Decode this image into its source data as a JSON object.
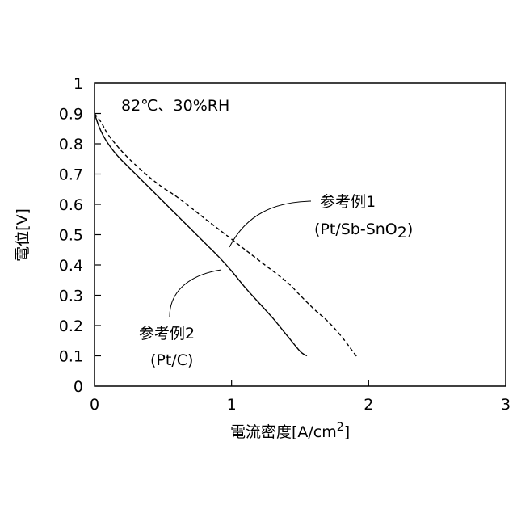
{
  "chart_data": {
    "type": "line",
    "title": "",
    "xlabel": "電流密度[A/cm²]",
    "xlabel_main": "電流密度[A/cm",
    "xlabel_sup": "2",
    "xlabel_end": "]",
    "ylabel": "電位[V]",
    "xlim": [
      0,
      3
    ],
    "ylim": [
      0,
      1
    ],
    "x_ticks": [
      0,
      1,
      2,
      3
    ],
    "y_ticks": [
      0,
      0.1,
      0.2,
      0.3,
      0.4,
      0.5,
      0.6,
      0.7,
      0.8,
      0.9,
      1
    ],
    "x_tick_labels": [
      "0",
      "1",
      "2",
      "3"
    ],
    "y_tick_labels": [
      "0",
      "0.1",
      "0.2",
      "0.3",
      "0.4",
      "0.5",
      "0.6",
      "0.7",
      "0.8",
      "0.9",
      "1"
    ],
    "grid": false,
    "condition_label": "82℃、30%RH",
    "series": [
      {
        "name": "参考例2",
        "sublabel": "(Pt/C)",
        "line_style": "solid",
        "color": "#000000",
        "x": [
          0,
          0.03,
          0.06,
          0.1,
          0.15,
          0.2,
          0.3,
          0.4,
          0.5,
          0.6,
          0.7,
          0.8,
          0.9,
          1.0,
          1.1,
          1.2,
          1.3,
          1.4,
          1.5,
          1.55
        ],
        "y": [
          0.9,
          0.86,
          0.83,
          0.8,
          0.77,
          0.745,
          0.7,
          0.655,
          0.61,
          0.565,
          0.52,
          0.475,
          0.43,
          0.38,
          0.325,
          0.275,
          0.225,
          0.17,
          0.115,
          0.1
        ]
      },
      {
        "name": "参考例1",
        "sublabel_main": "(Pt/Sb-SnO",
        "sublabel_sub": "2",
        "sublabel_end": ")",
        "line_style": "dashed",
        "color": "#000000",
        "x": [
          0,
          0.05,
          0.1,
          0.2,
          0.3,
          0.4,
          0.5,
          0.6,
          0.8,
          1.0,
          1.2,
          1.4,
          1.5,
          1.6,
          1.7,
          1.8,
          1.9,
          1.92
        ],
        "y": [
          0.9,
          0.87,
          0.83,
          0.775,
          0.73,
          0.69,
          0.655,
          0.625,
          0.555,
          0.485,
          0.415,
          0.345,
          0.3,
          0.255,
          0.215,
          0.165,
          0.105,
          0.095
        ]
      }
    ]
  }
}
